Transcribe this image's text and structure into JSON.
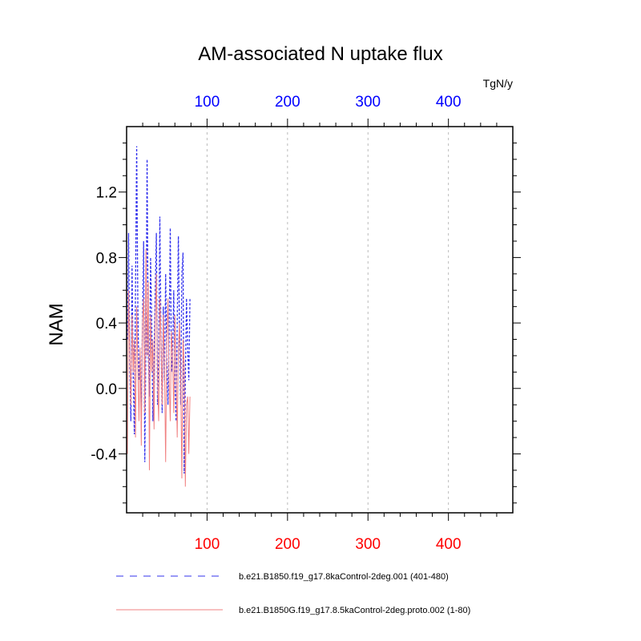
{
  "chart_data": {
    "type": "line",
    "title": "AM-associated N uptake flux",
    "units": "TgN/y",
    "ylabel": "NAM",
    "xlabel": "",
    "xlim": [
      0,
      480
    ],
    "ylim": [
      -0.76,
      1.6
    ],
    "grid": "vertical-dashed",
    "x_ticks": [
      100,
      200,
      300,
      400
    ],
    "x_tick_labels": [
      "100",
      "200",
      "300",
      "400"
    ],
    "y_ticks": [
      -0.4,
      0.0,
      0.4,
      0.8,
      1.2
    ],
    "y_tick_labels": [
      "-0.4",
      "0.0",
      "0.4",
      "0.8",
      "1.2"
    ],
    "top_axis_color": "#0000ff",
    "bottom_axis_color": "#ff0000",
    "series": [
      {
        "name": "b.e21.B1850.f19_g17.8kaControl-2deg.001 (401-480)",
        "color": "#3333ee",
        "style": "dashed",
        "values": [
          0.3,
          0.95,
          0.15,
          -0.2,
          0.75,
          0.1,
          -0.28,
          0.6,
          1.48,
          0.5,
          0.05,
          0.2,
          -0.15,
          0.4,
          0.9,
          -0.45,
          0.3,
          1.4,
          0.2,
          -0.05,
          0.8,
          0.4,
          -0.2,
          0.15,
          0.6,
          0.95,
          -0.1,
          0.2,
          1.05,
          0.3,
          -0.15,
          0.5,
          0.05,
          0.7,
          0.2,
          -0.1,
          0.3,
          0.98,
          0.1,
          0.2,
          0.6,
          0.05,
          -0.2,
          0.4,
          0.93,
          0.3,
          -0.1,
          0.7,
          0.83,
          -0.52,
          0.05,
          0.55,
          0.25,
          0.05,
          0.55
        ]
      },
      {
        "name": "b.e21.B1850G.f19_g17.8.5kaControl-2deg.proto.002 (1-80)",
        "color": "#f08080",
        "style": "solid",
        "values": [
          -0.4,
          0.6,
          0.2,
          -0.1,
          0.45,
          0.1,
          0.3,
          -0.3,
          0.5,
          0.15,
          -0.2,
          0.25,
          -0.35,
          0.4,
          0.55,
          -0.15,
          0.85,
          0.2,
          0.65,
          -0.5,
          0.45,
          0.1,
          0.3,
          -0.25,
          0.4,
          0.7,
          0.05,
          -0.2,
          0.55,
          0.3,
          -0.1,
          0.45,
          0.15,
          -0.45,
          0.3,
          0.55,
          0.05,
          -0.2,
          0.35,
          0.2,
          -0.15,
          0.45,
          0.1,
          -0.3,
          0.25,
          0.4,
          0.05,
          -0.55,
          0.3,
          0.15,
          -0.6,
          -0.1,
          -0.05,
          -0.4,
          -0.05
        ]
      }
    ]
  }
}
